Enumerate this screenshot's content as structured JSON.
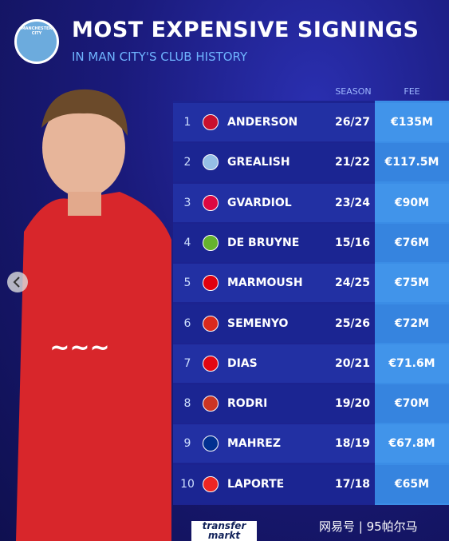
{
  "header": {
    "badge": "MANCHESTER CITY",
    "title": "MOST EXPENSIVE SIGNINGS",
    "subtitle": "IN MAN CITY'S CLUB HISTORY"
  },
  "table": {
    "columns": [
      "SEASON",
      "FEE"
    ],
    "rows": [
      [
        1,
        "ANDERSON",
        "26/27",
        "€135M"
      ],
      [
        2,
        "GREALISH",
        "21/22",
        "€117.5M"
      ],
      [
        3,
        "GVARDIOL",
        "23/24",
        "€90M"
      ],
      [
        4,
        "DE BRUYNE",
        "15/16",
        "€76M"
      ],
      [
        5,
        "MARMOUSH",
        "24/25",
        "€75M"
      ],
      [
        6,
        "SEMENYO",
        "25/26",
        "€72M"
      ],
      [
        7,
        "DIAS",
        "20/21",
        "€71.6M"
      ],
      [
        8,
        "RODRI",
        "19/20",
        "€70M"
      ],
      [
        9,
        "MAHREZ",
        "18/19",
        "€67.8M"
      ],
      [
        10,
        "LAPORTE",
        "17/18",
        "€65M"
      ]
    ]
  },
  "footer": {
    "logo": [
      "transfer",
      "markt"
    ],
    "watermark": "网易号 | 95帕尔马"
  }
}
